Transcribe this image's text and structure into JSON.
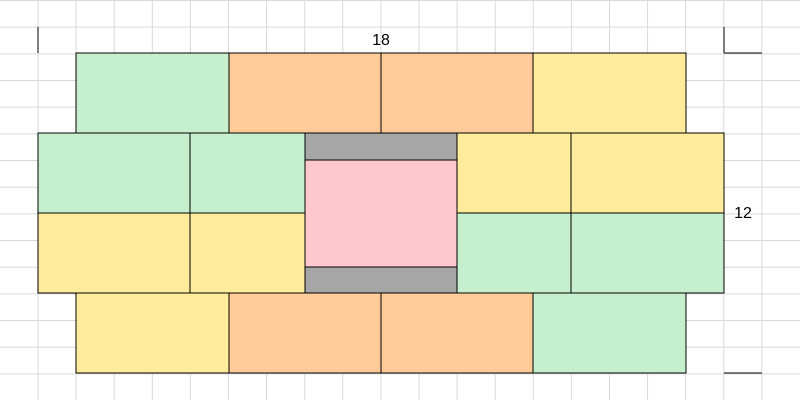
{
  "dimensions": {
    "width": "18",
    "height": "12"
  }
}
